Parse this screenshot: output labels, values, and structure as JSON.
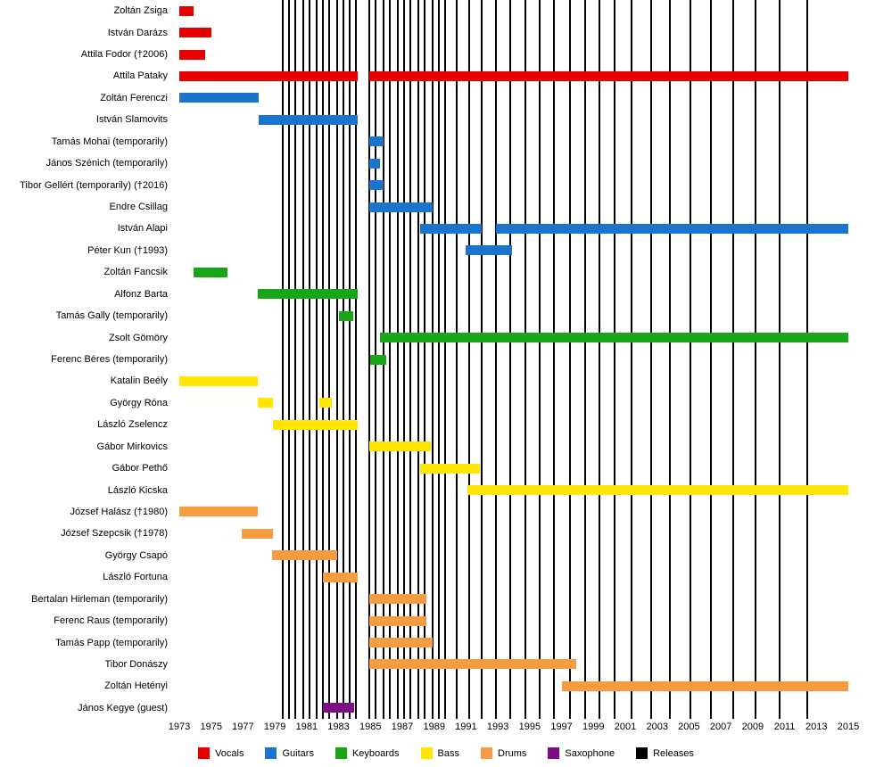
{
  "chart_data": {
    "type": "timeline",
    "description": "Band members timeline with releases marked as vertical black lines",
    "x_axis": {
      "min": 1973,
      "max": 2015,
      "ticks": [
        1973,
        1975,
        1977,
        1979,
        1981,
        1983,
        1985,
        1987,
        1989,
        1991,
        1993,
        1995,
        1997,
        1999,
        2001,
        2003,
        2005,
        2007,
        2009,
        2011,
        2013,
        2015
      ]
    },
    "legend": [
      {
        "label": "Vocals",
        "color": "#e60000"
      },
      {
        "label": "Guitars",
        "color": "#1874cd"
      },
      {
        "label": "Keyboards",
        "color": "#18a518"
      },
      {
        "label": "Bass",
        "color": "#ffe500"
      },
      {
        "label": "Drums",
        "color": "#f79b41"
      },
      {
        "label": "Saxophone",
        "color": "#7b0e82"
      },
      {
        "label": "Releases",
        "color": "#000000"
      }
    ],
    "members": [
      {
        "name": "Zoltán Zsiga",
        "role": "Vocals",
        "bars": [
          [
            1973,
            1973.9
          ]
        ]
      },
      {
        "name": "István Darázs",
        "role": "Vocals",
        "bars": [
          [
            1973,
            1975.0
          ]
        ]
      },
      {
        "name": "Attila Fodor (†2006)",
        "role": "Vocals",
        "bars": [
          [
            1973,
            1974.6
          ]
        ]
      },
      {
        "name": "Attila Pataky",
        "role": "Vocals",
        "bars": [
          [
            1973,
            1984.2
          ],
          [
            1984.9,
            2015
          ]
        ]
      },
      {
        "name": "Zoltán Ferenczi",
        "role": "Guitars",
        "bars": [
          [
            1973,
            1978.0
          ]
        ]
      },
      {
        "name": "István Slamovits",
        "role": "Guitars",
        "bars": [
          [
            1978.0,
            1984.2
          ]
        ]
      },
      {
        "name": "Tamás Mohai (temporarily)",
        "role": "Guitars",
        "bars": [
          [
            1984.9,
            1985.8
          ]
        ]
      },
      {
        "name": "János Szénich (temporarily)",
        "role": "Guitars",
        "bars": [
          [
            1984.9,
            1985.6
          ]
        ]
      },
      {
        "name": "Tibor Gellért (temporarily) (†2016)",
        "role": "Guitars",
        "bars": [
          [
            1984.9,
            1985.8
          ]
        ]
      },
      {
        "name": "Endre Csillag",
        "role": "Guitars",
        "bars": [
          [
            1984.9,
            1988.9
          ]
        ]
      },
      {
        "name": "István Alapi",
        "role": "Guitars",
        "bars": [
          [
            1988.1,
            1992.0
          ],
          [
            1992.9,
            2015
          ]
        ]
      },
      {
        "name": "Péter Kun (†1993)",
        "role": "Guitars",
        "bars": [
          [
            1991.0,
            1993.9
          ]
        ]
      },
      {
        "name": "Zoltán Fancsik",
        "role": "Keyboards",
        "bars": [
          [
            1973.9,
            1976.0
          ]
        ]
      },
      {
        "name": "Alfonz Barta",
        "role": "Keyboards",
        "bars": [
          [
            1977.9,
            1984.2
          ]
        ]
      },
      {
        "name": "Tamás Gally (temporarily)",
        "role": "Keyboards",
        "bars": [
          [
            1983.0,
            1983.9
          ]
        ]
      },
      {
        "name": "Zsolt Gömöry",
        "role": "Keyboards",
        "bars": [
          [
            1985.6,
            2015
          ]
        ]
      },
      {
        "name": "Ferenc Béres (temporarily)",
        "role": "Keyboards",
        "bars": [
          [
            1985.0,
            1986.0
          ]
        ]
      },
      {
        "name": "Katalin Beély",
        "role": "Bass",
        "bars": [
          [
            1973,
            1977.9
          ]
        ]
      },
      {
        "name": "György Róna",
        "role": "Bass",
        "bars": [
          [
            1977.9,
            1978.9
          ],
          [
            1981.8,
            1982.6
          ]
        ]
      },
      {
        "name": "László Zselencz",
        "role": "Bass",
        "bars": [
          [
            1978.9,
            1984.2
          ]
        ]
      },
      {
        "name": "Gábor Mirkovics",
        "role": "Bass",
        "bars": [
          [
            1984.9,
            1988.8
          ]
        ]
      },
      {
        "name": "Gábor Pethő",
        "role": "Bass",
        "bars": [
          [
            1988.1,
            1991.9
          ]
        ]
      },
      {
        "name": "László Kicska",
        "role": "Bass",
        "bars": [
          [
            1991.1,
            2015
          ]
        ]
      },
      {
        "name": "József Halász (†1980)",
        "role": "Drums",
        "bars": [
          [
            1973,
            1977.9
          ]
        ]
      },
      {
        "name": "József Szepcsik (†1978)",
        "role": "Drums",
        "bars": [
          [
            1976.9,
            1978.9
          ]
        ]
      },
      {
        "name": "György Csapó",
        "role": "Drums",
        "bars": [
          [
            1978.8,
            1982.9
          ]
        ]
      },
      {
        "name": "László Fortuna",
        "role": "Drums",
        "bars": [
          [
            1982.0,
            1984.2
          ]
        ]
      },
      {
        "name": "Bertalan Hirleman (temporarily)",
        "role": "Drums",
        "bars": [
          [
            1984.9,
            1988.5
          ]
        ]
      },
      {
        "name": "Ferenc Raus (temporarily)",
        "role": "Drums",
        "bars": [
          [
            1984.9,
            1988.5
          ]
        ]
      },
      {
        "name": "Tamás Papp (temporarily)",
        "role": "Drums",
        "bars": [
          [
            1984.9,
            1988.9
          ]
        ]
      },
      {
        "name": "Tibor Donászy",
        "role": "Drums",
        "bars": [
          [
            1984.9,
            1997.9
          ]
        ]
      },
      {
        "name": "Zoltán Hetényi",
        "role": "Drums",
        "bars": [
          [
            1997.0,
            2015
          ]
        ]
      },
      {
        "name": "János Kegye (guest)",
        "role": "Saxophone",
        "bars": [
          [
            1982.0,
            1984.0
          ]
        ]
      }
    ],
    "releases": [
      1979.5,
      1979.9,
      1980.3,
      1980.8,
      1981.2,
      1981.6,
      1982.0,
      1982.4,
      1982.9,
      1983.3,
      1983.7,
      1984.1,
      1984.9,
      1985.3,
      1985.8,
      1986.2,
      1986.7,
      1987.1,
      1987.5,
      1988.0,
      1988.4,
      1988.9,
      1989.3,
      1989.7,
      1990.4,
      1991.2,
      1992.0,
      1992.9,
      1993.8,
      1994.7,
      1995.6,
      1996.5,
      1997.5,
      1998.5,
      1999.4,
      2000.3,
      2001.4,
      2002.6,
      2003.8,
      2005.1,
      2006.4,
      2007.8,
      2009.2,
      2010.7,
      2012.4
    ]
  }
}
